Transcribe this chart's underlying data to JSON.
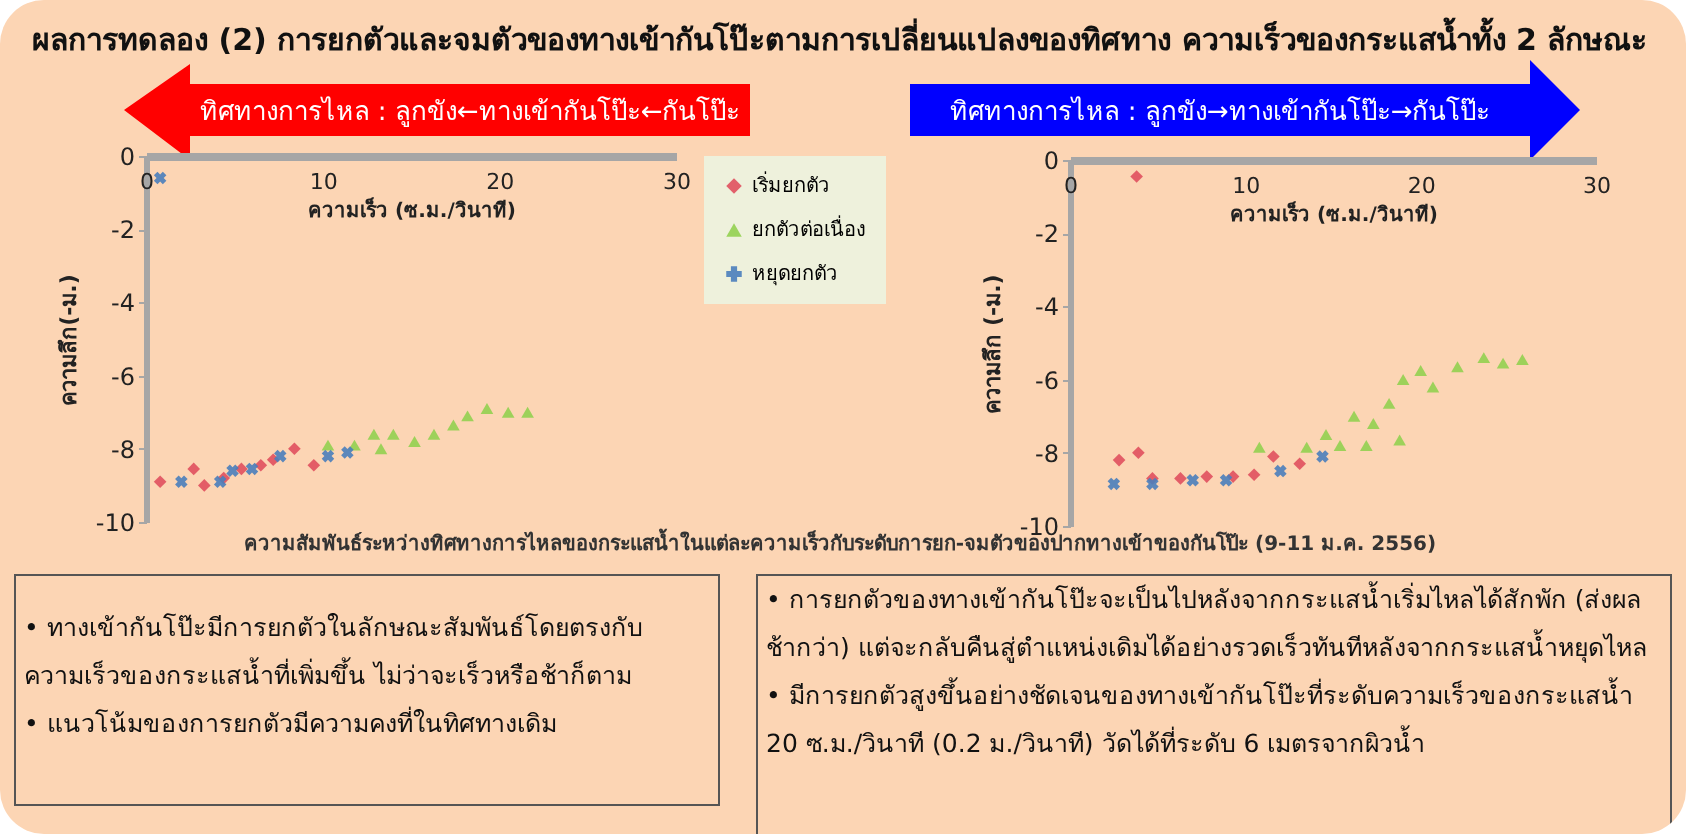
{
  "chart_data": [
    {
      "type": "scatter",
      "title": "ผลการทดลอง (2) การยกตัวและจมตัวของทางเข้ากันโป๊ะตามการเปลี่ยนแปลงของทิศทาง ความเร็วของกระแสน้ำทั้ง 2 ลักษณะ",
      "xlabel": "ความเร็ว (ซ.ม./วินาที)",
      "ylabel": "ความลึก(-ม.)",
      "xlim": [
        0,
        30
      ],
      "xticks": [
        0,
        10,
        20,
        30
      ],
      "ylim": [
        -10,
        0
      ],
      "yticks": [
        0,
        -2,
        -4,
        -6,
        -8,
        -10
      ],
      "grid": false,
      "legend": "right",
      "series": [
        {
          "name": "เริ่มยกตัว",
          "color": "#e0505e",
          "marker": "diamond",
          "x": [
            0.8,
            2.7,
            3.3,
            4.4,
            5.4,
            6.5,
            7.2,
            8.4,
            9.5
          ],
          "values": [
            -8.9,
            -8.55,
            -9.0,
            -8.8,
            -8.55,
            -8.45,
            -8.3,
            -8.0,
            -8.45
          ]
        },
        {
          "name": "ยกตัวต่อเนื่อง",
          "color": "#92d050",
          "marker": "triangle",
          "x": [
            10.3,
            11.8,
            12.9,
            13.3,
            14.0,
            15.2,
            16.3,
            17.4,
            18.2,
            19.3,
            20.5,
            21.6
          ],
          "values": [
            -7.9,
            -7.9,
            -7.6,
            -8.0,
            -7.6,
            -7.8,
            -7.6,
            -7.35,
            -7.1,
            -6.9,
            -7.0,
            -7.0
          ]
        },
        {
          "name": "หยุดยกตัว",
          "color": "#4a7ebb",
          "marker": "cross",
          "x": [
            0.8,
            2.0,
            4.2,
            4.9,
            6.0,
            7.6,
            10.3,
            11.4
          ],
          "values": [
            -0.6,
            -8.9,
            -8.9,
            -8.6,
            -8.55,
            -8.2,
            -8.2,
            -8.1
          ]
        }
      ],
      "annotations": [
        "ทิศทางการไหล : ลูกขัง←ทางเข้ากันโป๊ะ←กันโป๊ะ",
        "ความสัมพันธ์ระหว่างทิศทางการไหลของกระแสน้ำในแต่ละความเร็วกับระดับการยก-จมตัวของปากทางเข้าของกันโป๊ะ (9-11 ม.ค. 2556)",
        "• ทางเข้ากันโป๊ะมีการยกตัวในลักษณะสัมพันธ์โดยตรงกับความเร็วของกระแสน้ำที่เพิ่มขึ้น ไม่ว่าจะเร็วหรือช้าก็ตาม",
        "• แนวโน้มของการยกตัวมีความคงที่ในทิศทางเดิม"
      ]
    },
    {
      "type": "scatter",
      "xlabel": "ความเร็ว (ซ.ม./วินาที)",
      "ylabel": "ความลึก (-ม.)",
      "xlim": [
        0,
        30
      ],
      "xticks": [
        0,
        10,
        20,
        30
      ],
      "ylim": [
        -10,
        0
      ],
      "yticks": [
        0,
        -2,
        -4,
        -6,
        -8,
        -10
      ],
      "grid": false,
      "series": [
        {
          "color": "#e0505e",
          "marker": "diamond",
          "x": [
            3.8,
            2.8,
            3.9,
            4.7,
            6.3,
            7.8,
            9.3,
            10.5,
            11.6,
            13.1
          ],
          "values": [
            -0.45,
            -8.2,
            -8.0,
            -8.7,
            -8.7,
            -8.65,
            -8.65,
            -8.6,
            -8.1,
            -8.3
          ]
        },
        {
          "color": "#92d050",
          "marker": "triangle",
          "x": [
            10.8,
            13.5,
            14.6,
            15.4,
            16.2,
            16.9,
            17.3,
            18.2,
            18.8,
            19.0,
            20.0,
            20.7,
            22.1,
            23.6,
            24.7,
            25.8
          ],
          "values": [
            -7.85,
            -7.85,
            -7.5,
            -7.8,
            -7.0,
            -7.8,
            -7.2,
            -6.65,
            -7.65,
            -6.0,
            -5.75,
            -6.2,
            -5.65,
            -5.4,
            -5.55,
            -5.45
          ]
        },
        {
          "color": "#4a7ebb",
          "marker": "cross",
          "x": [
            2.5,
            4.7,
            7.0,
            8.9,
            12.0,
            14.4
          ],
          "values": [
            -8.85,
            -8.85,
            -8.75,
            -8.75,
            -8.5,
            -8.1
          ]
        }
      ],
      "annotations": [
        "ทิศทางการไหล : ลูกขัง→ทางเข้ากันโป๊ะ→กันโป๊ะ",
        "• การยกตัวของทางเข้ากันโป๊ะจะเป็นไปหลังจากกระแสน้ำเริ่มไหลได้สักพัก (ส่งผลช้ากว่า) แต่จะกลับคืนสู่ตำแหน่งเดิมได้อย่างรวดเร็วทันทีหลังจากกระแสน้ำหยุดไหล",
        "• มีการยกตัวสูงขึ้นอย่างชัดเจนของทางเข้ากันโป๊ะที่ระดับความเร็วของกระแสน้ำ 20 ซ.ม./วินาที (0.2 ม./วินาที) วัดได้ที่ระดับ 6 เมตรจากผิวน้ำ"
      ]
    }
  ]
}
